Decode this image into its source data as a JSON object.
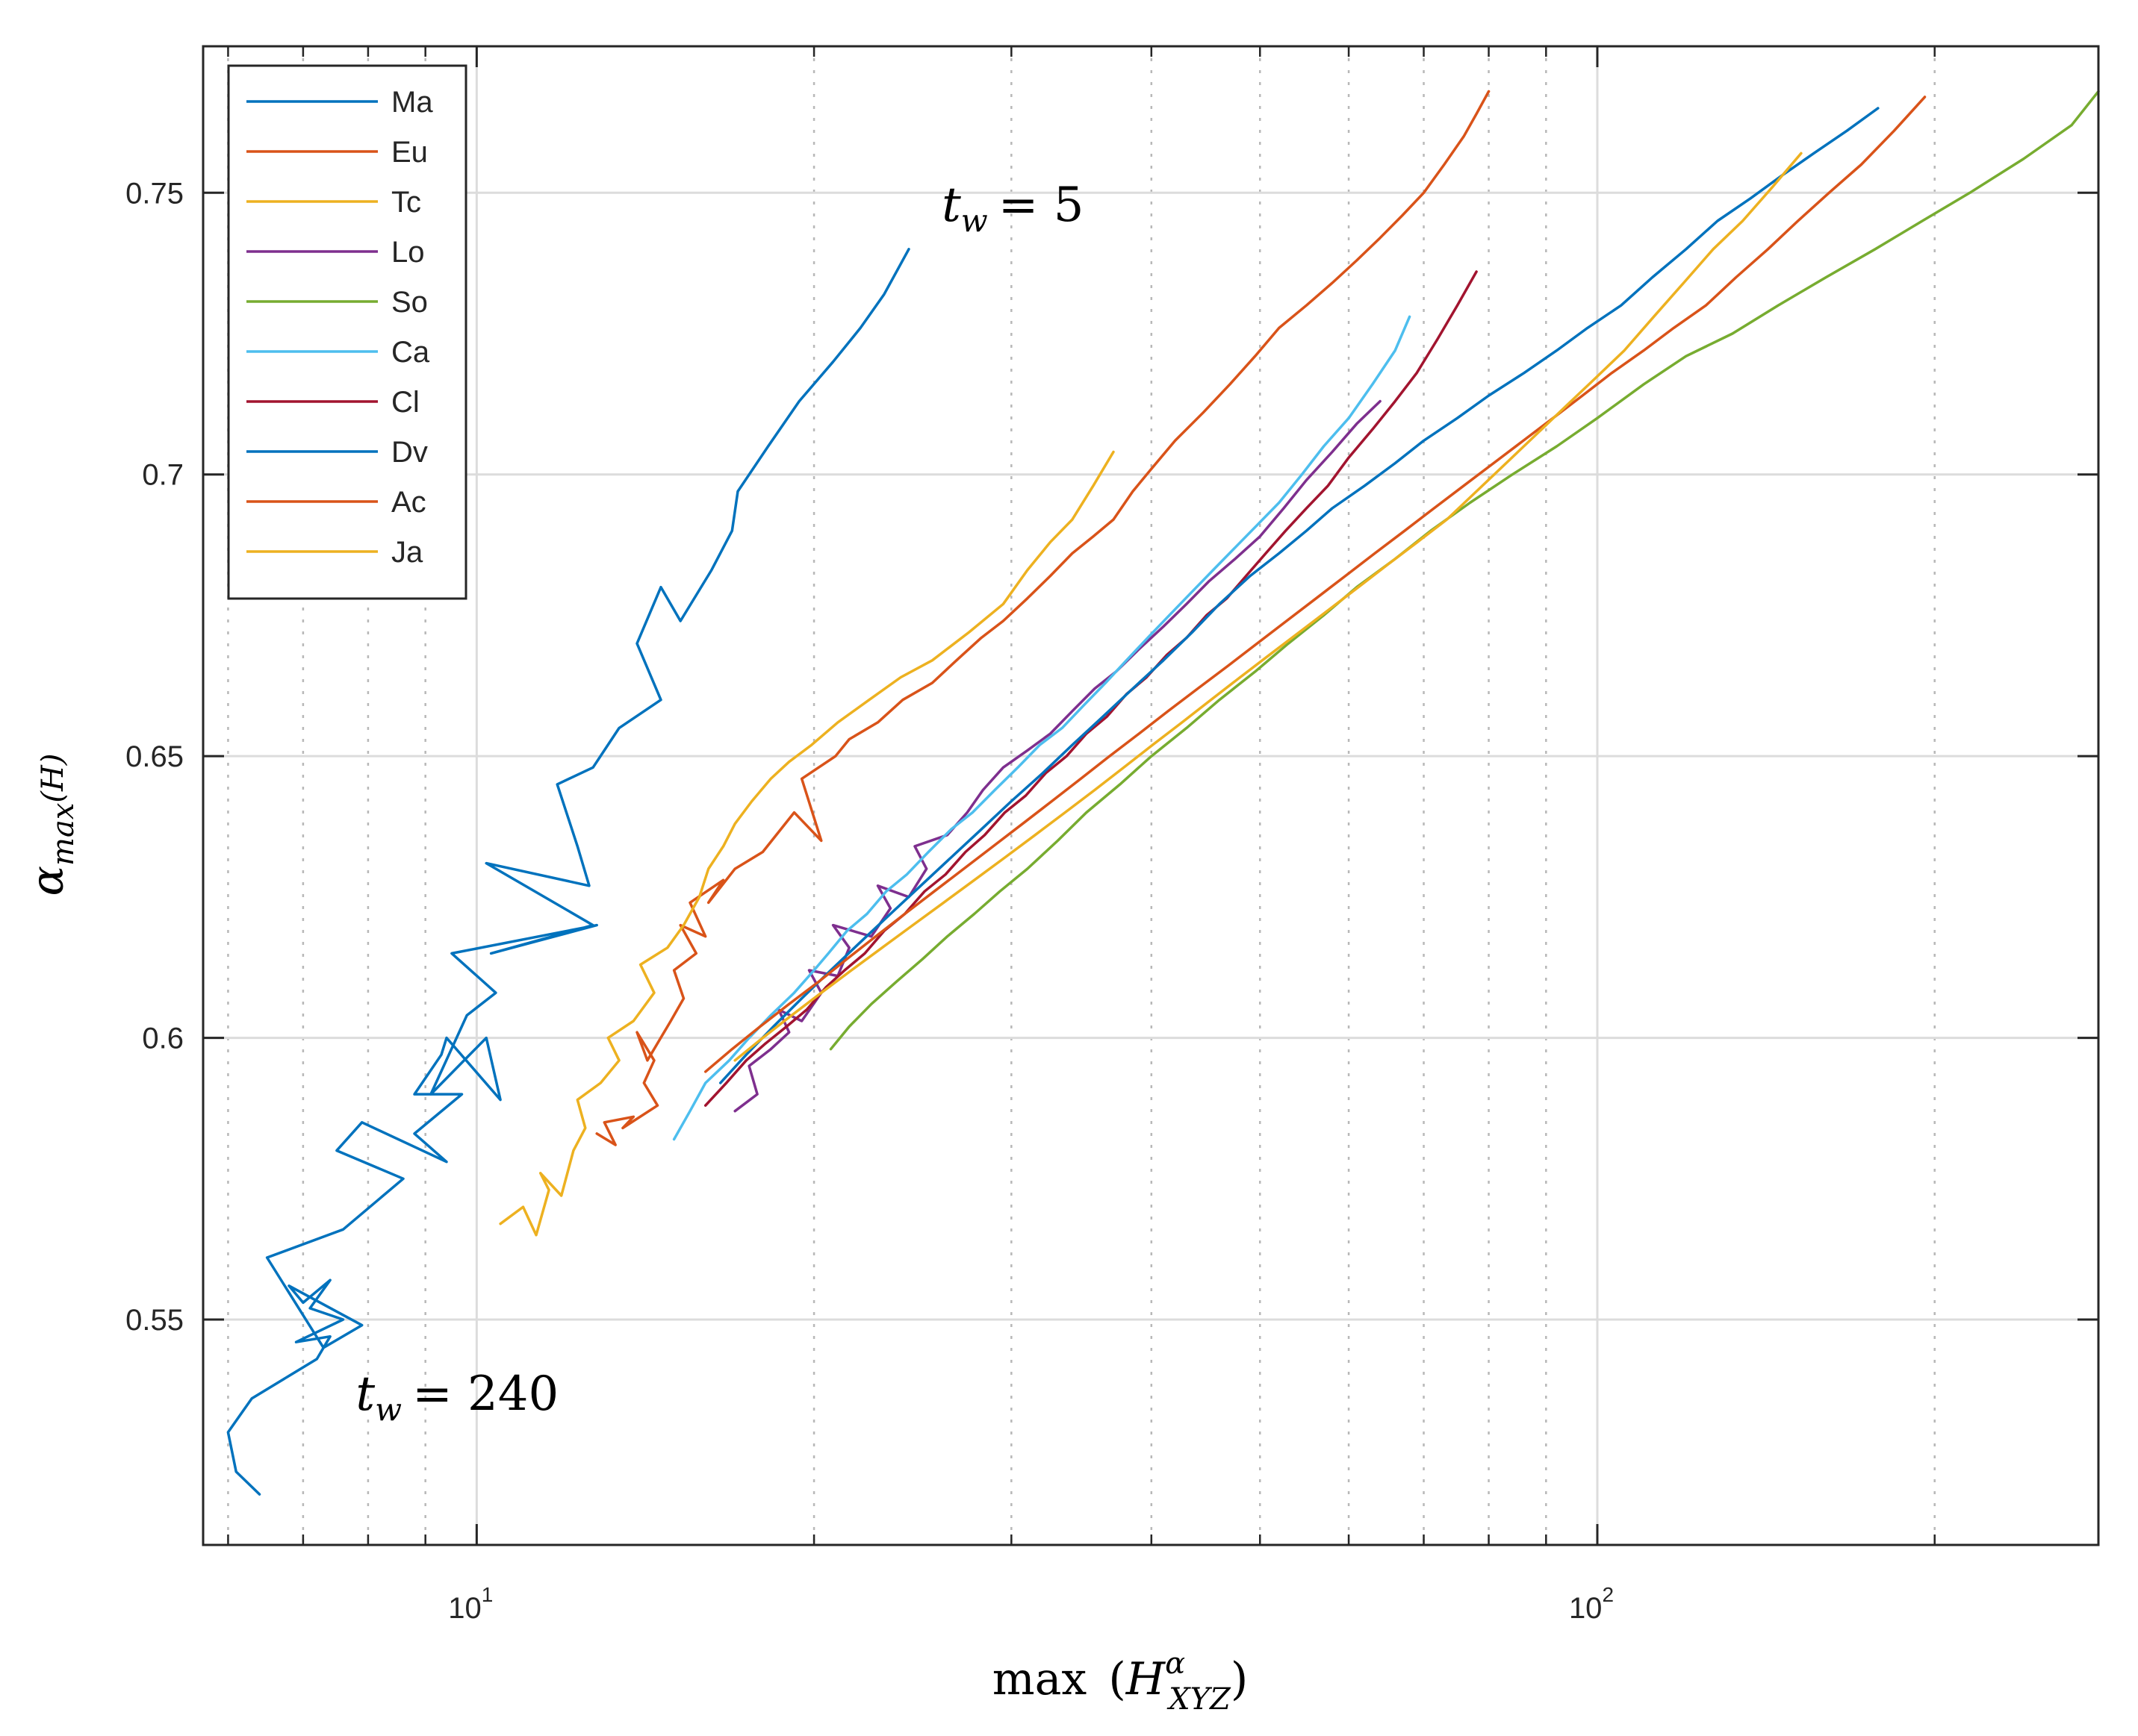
{
  "chart_data": {
    "type": "line",
    "title": "",
    "xlabel": {
      "prefix": "max",
      "base": "H",
      "sup": "α",
      "sub": "XYZ"
    },
    "ylabel": {
      "base": "α",
      "sub": "max",
      "arg": "(H)"
    },
    "xscale": "log",
    "xlim": [
      5.7,
      280
    ],
    "ylim": [
      0.51,
      0.776
    ],
    "grid": true,
    "legend_position": "top-left",
    "x_ticks": [
      {
        "base": "10",
        "exp": "1",
        "value": 10
      },
      {
        "base": "10",
        "exp": "2",
        "value": 100
      }
    ],
    "y_ticks": [
      {
        "label": "0.55",
        "value": 0.55
      },
      {
        "label": "0.6",
        "value": 0.6
      },
      {
        "label": "0.65",
        "value": 0.65
      },
      {
        "label": "0.7",
        "value": 0.7
      },
      {
        "label": "0.75",
        "value": 0.75
      }
    ],
    "annotations": [
      {
        "var": "t",
        "sub": "w",
        "value": "= 5",
        "x": 26,
        "y": 0.745
      },
      {
        "var": "t",
        "sub": "w",
        "value": "= 240",
        "x": 7.8,
        "y": 0.534
      }
    ],
    "series": [
      {
        "name": "Ma",
        "color": "#0072BD",
        "x": [
          6.4,
          6.1,
          6.0,
          6.3,
          6.8,
          7.2,
          7.4,
          6.9,
          7.6,
          7.1,
          7.4,
          7.0,
          6.8,
          7.9,
          7.3,
          6.5,
          7.6,
          8.6,
          7.5,
          7.9,
          9.4,
          8.8,
          9.7,
          8.8,
          9.3,
          9.4,
          10.5,
          10.2,
          9.1,
          9.8,
          10.4,
          9.5,
          12.8,
          10.3,
          12.7,
          10.2,
          12.6,
          12.3,
          11.8,
          12.7,
          13.4,
          14.6,
          13.9,
          14.6,
          15.2,
          16.2,
          16.9,
          17.1,
          18.2,
          19.4,
          20.8,
          22.0,
          23.1,
          24.3
        ],
        "y": [
          0.519,
          0.523,
          0.53,
          0.536,
          0.54,
          0.543,
          0.547,
          0.546,
          0.55,
          0.552,
          0.557,
          0.553,
          0.556,
          0.549,
          0.545,
          0.561,
          0.566,
          0.575,
          0.58,
          0.585,
          0.578,
          0.583,
          0.59,
          0.59,
          0.597,
          0.6,
          0.589,
          0.6,
          0.59,
          0.604,
          0.608,
          0.615,
          0.62,
          0.615,
          0.62,
          0.631,
          0.627,
          0.634,
          0.645,
          0.648,
          0.655,
          0.66,
          0.67,
          0.68,
          0.674,
          0.683,
          0.69,
          0.697,
          0.705,
          0.713,
          0.72,
          0.726,
          0.732,
          0.74
        ]
      },
      {
        "name": "Eu",
        "color": "#D95319",
        "x": [
          12.8,
          13.3,
          13.0,
          13.8,
          13.5,
          14.5,
          14.1,
          14.4,
          13.9,
          14.2,
          14.9,
          15.3,
          15.0,
          15.7,
          15.2,
          16.0,
          15.5,
          16.6,
          16.1,
          17.0,
          18.0,
          19.2,
          20.3,
          19.5,
          20.9,
          21.5,
          22.8,
          24.0,
          25.5,
          26.8,
          28.2,
          29.5,
          31.0,
          32.5,
          34.0,
          35.5,
          37.0,
          38.5,
          40.0,
          42.0,
          44.5,
          47.0,
          49.5,
          52.0,
          55.0,
          58.0,
          61.0,
          64.0,
          67.0,
          70.0,
          73.0,
          76.0,
          78.0,
          80.0
        ],
        "y": [
          0.583,
          0.581,
          0.585,
          0.586,
          0.584,
          0.588,
          0.592,
          0.596,
          0.601,
          0.596,
          0.603,
          0.607,
          0.612,
          0.615,
          0.62,
          0.618,
          0.624,
          0.628,
          0.624,
          0.63,
          0.633,
          0.64,
          0.635,
          0.646,
          0.65,
          0.653,
          0.656,
          0.66,
          0.663,
          0.667,
          0.671,
          0.674,
          0.678,
          0.682,
          0.686,
          0.689,
          0.692,
          0.697,
          0.701,
          0.706,
          0.711,
          0.716,
          0.721,
          0.726,
          0.73,
          0.734,
          0.738,
          0.742,
          0.746,
          0.75,
          0.755,
          0.76,
          0.764,
          0.768
        ]
      },
      {
        "name": "Tc",
        "color": "#EDB120",
        "x": [
          10.5,
          11.0,
          11.3,
          11.6,
          11.4,
          11.9,
          12.2,
          12.5,
          12.3,
          12.9,
          13.4,
          13.1,
          13.8,
          14.4,
          14.0,
          14.8,
          15.3,
          15.8,
          16.1,
          16.6,
          17.0,
          17.6,
          18.3,
          19.0,
          19.9,
          21.0,
          22.4,
          23.9,
          25.5,
          27.5,
          29.5,
          31.0,
          32.5,
          34.0,
          35.5,
          37.0
        ],
        "y": [
          0.567,
          0.57,
          0.565,
          0.573,
          0.576,
          0.572,
          0.58,
          0.584,
          0.589,
          0.592,
          0.596,
          0.6,
          0.603,
          0.608,
          0.613,
          0.616,
          0.62,
          0.625,
          0.63,
          0.634,
          0.638,
          0.642,
          0.646,
          0.649,
          0.652,
          0.656,
          0.66,
          0.664,
          0.667,
          0.672,
          0.677,
          0.683,
          0.688,
          0.692,
          0.698,
          0.704
        ]
      },
      {
        "name": "Lo",
        "color": "#7E2F8E",
        "x": [
          17.0,
          17.8,
          17.5,
          18.3,
          19.0,
          18.6,
          19.5,
          20.3,
          19.8,
          21.0,
          21.5,
          20.8,
          22.5,
          23.4,
          22.8,
          24.3,
          25.2,
          24.6,
          26.3,
          27.4,
          28.3,
          29.5,
          31.0,
          32.5,
          34.0,
          35.6,
          37.2,
          39.0,
          41.0,
          43.0,
          45.0,
          47.5,
          50.0,
          52.5,
          55.0,
          58.0,
          61.0,
          64.0
        ],
        "y": [
          0.587,
          0.59,
          0.595,
          0.598,
          0.601,
          0.605,
          0.603,
          0.608,
          0.612,
          0.611,
          0.616,
          0.62,
          0.618,
          0.623,
          0.627,
          0.625,
          0.63,
          0.634,
          0.636,
          0.64,
          0.644,
          0.648,
          0.651,
          0.654,
          0.658,
          0.662,
          0.665,
          0.669,
          0.673,
          0.677,
          0.681,
          0.685,
          0.689,
          0.694,
          0.699,
          0.704,
          0.709,
          0.713
        ]
      },
      {
        "name": "So",
        "color": "#77AC30",
        "x": [
          20.7,
          21.5,
          22.5,
          23.7,
          25.0,
          26.3,
          27.8,
          29.3,
          31.0,
          33.0,
          35.0,
          37.5,
          40.0,
          43.0,
          46.0,
          49.5,
          53.0,
          57.0,
          61.0,
          66.0,
          71.0,
          77.0,
          84.0,
          92.0,
          100.0,
          110.0,
          120.0,
          132.0,
          145.0,
          160.0,
          177.0,
          195.0,
          215.0,
          240.0,
          265.0,
          280.0
        ],
        "y": [
          0.598,
          0.602,
          0.606,
          0.61,
          0.614,
          0.618,
          0.622,
          0.626,
          0.63,
          0.635,
          0.64,
          0.645,
          0.65,
          0.655,
          0.66,
          0.665,
          0.67,
          0.675,
          0.68,
          0.685,
          0.69,
          0.695,
          0.7,
          0.705,
          0.71,
          0.716,
          0.721,
          0.725,
          0.73,
          0.735,
          0.74,
          0.745,
          0.75,
          0.756,
          0.762,
          0.768
        ]
      },
      {
        "name": "Ca",
        "color": "#4DBEEE",
        "x": [
          15.0,
          15.5,
          16.0,
          16.8,
          17.5,
          18.3,
          19.2,
          20.0,
          20.6,
          21.4,
          22.3,
          23.2,
          24.2,
          25.3,
          26.5,
          27.7,
          29.0,
          30.4,
          31.8,
          33.3,
          34.8,
          36.4,
          38.0,
          39.7,
          41.5,
          43.4,
          45.4,
          47.5,
          49.7,
          52.0,
          54.5,
          57.0,
          60.0,
          63.0,
          66.0,
          68.0
        ],
        "y": [
          0.582,
          0.587,
          0.592,
          0.596,
          0.6,
          0.604,
          0.608,
          0.612,
          0.615,
          0.619,
          0.622,
          0.626,
          0.629,
          0.633,
          0.637,
          0.64,
          0.644,
          0.648,
          0.652,
          0.655,
          0.659,
          0.663,
          0.667,
          0.671,
          0.675,
          0.679,
          0.683,
          0.687,
          0.691,
          0.695,
          0.7,
          0.705,
          0.71,
          0.716,
          0.722,
          0.728
        ]
      },
      {
        "name": "Cl",
        "color": "#A2142F",
        "x": [
          16.0,
          16.7,
          17.4,
          18.1,
          18.9,
          19.7,
          20.5,
          21.3,
          22.2,
          23.1,
          24.1,
          25.1,
          26.2,
          27.3,
          28.4,
          29.6,
          30.9,
          32.2,
          33.6,
          35.0,
          36.5,
          38.0,
          39.6,
          41.3,
          43.0,
          44.8,
          46.7,
          48.6,
          50.6,
          52.7,
          55.0,
          57.5,
          60.0,
          63.0,
          66.0,
          69.0,
          72.0,
          75.0,
          78.0
        ],
        "y": [
          0.588,
          0.592,
          0.596,
          0.599,
          0.602,
          0.605,
          0.609,
          0.612,
          0.615,
          0.619,
          0.622,
          0.626,
          0.629,
          0.633,
          0.636,
          0.64,
          0.643,
          0.647,
          0.65,
          0.654,
          0.657,
          0.661,
          0.664,
          0.668,
          0.671,
          0.675,
          0.678,
          0.682,
          0.686,
          0.69,
          0.694,
          0.698,
          0.703,
          0.708,
          0.713,
          0.718,
          0.724,
          0.73,
          0.736
        ]
      },
      {
        "name": "Dv",
        "color": "#0072BD",
        "x": [
          16.5,
          17.4,
          18.4,
          19.5,
          20.7,
          22.0,
          23.4,
          24.9,
          26.5,
          28.2,
          30.0,
          32.0,
          34.0,
          36.2,
          38.5,
          41.0,
          43.5,
          46.0,
          49.0,
          52.0,
          55.0,
          58.0,
          62.0,
          66.0,
          70.0,
          75.0,
          80.0,
          86.0,
          92.0,
          98.0,
          105.0,
          112.0,
          120.0,
          128.0,
          137.0,
          146.0,
          156.0,
          167.0,
          178.0
        ],
        "y": [
          0.592,
          0.597,
          0.602,
          0.607,
          0.612,
          0.617,
          0.622,
          0.627,
          0.632,
          0.637,
          0.642,
          0.647,
          0.652,
          0.657,
          0.662,
          0.667,
          0.672,
          0.677,
          0.682,
          0.686,
          0.69,
          0.694,
          0.698,
          0.702,
          0.706,
          0.71,
          0.714,
          0.718,
          0.722,
          0.726,
          0.73,
          0.735,
          0.74,
          0.745,
          0.749,
          0.753,
          0.757,
          0.761,
          0.765
        ]
      },
      {
        "name": "Ac",
        "color": "#D95319",
        "x": [
          16.0,
          16.9,
          17.9,
          19.0,
          20.2,
          21.4,
          22.7,
          24.1,
          25.6,
          27.2,
          28.9,
          30.7,
          32.6,
          34.6,
          36.7,
          39.0,
          41.4,
          44.0,
          46.8,
          49.7,
          52.8,
          56.1,
          59.6,
          63.3,
          67.3,
          71.5,
          76.0,
          80.8,
          85.9,
          91.3,
          97.0,
          103.0,
          110.0,
          117.0,
          125.0,
          133.0,
          142.0,
          151.0,
          161.0,
          172.0,
          184.0,
          196.0
        ],
        "y": [
          0.594,
          0.598,
          0.602,
          0.606,
          0.61,
          0.614,
          0.618,
          0.622,
          0.626,
          0.63,
          0.634,
          0.638,
          0.642,
          0.646,
          0.65,
          0.654,
          0.658,
          0.662,
          0.666,
          0.67,
          0.674,
          0.678,
          0.682,
          0.686,
          0.69,
          0.694,
          0.698,
          0.702,
          0.706,
          0.71,
          0.714,
          0.718,
          0.722,
          0.726,
          0.73,
          0.735,
          0.74,
          0.745,
          0.75,
          0.755,
          0.761,
          0.767
        ]
      },
      {
        "name": "Ja",
        "color": "#EDB120",
        "x": [
          17.0,
          18.0,
          19.1,
          20.3,
          21.6,
          23.0,
          24.5,
          26.1,
          27.8,
          29.6,
          31.5,
          33.5,
          35.6,
          37.8,
          40.1,
          42.6,
          45.2,
          48.0,
          51.0,
          54.2,
          57.6,
          61.2,
          65.0,
          69.1,
          73.4,
          78.0,
          82.9,
          88.1,
          93.6,
          99.5,
          105.7,
          112.3,
          119.4,
          126.9,
          134.8,
          143.3,
          152.0
        ],
        "y": [
          0.596,
          0.6,
          0.604,
          0.608,
          0.612,
          0.616,
          0.62,
          0.624,
          0.628,
          0.632,
          0.636,
          0.64,
          0.644,
          0.648,
          0.652,
          0.656,
          0.66,
          0.664,
          0.668,
          0.672,
          0.676,
          0.68,
          0.684,
          0.688,
          0.692,
          0.697,
          0.702,
          0.707,
          0.712,
          0.717,
          0.722,
          0.728,
          0.734,
          0.74,
          0.745,
          0.751,
          0.757
        ]
      }
    ]
  }
}
